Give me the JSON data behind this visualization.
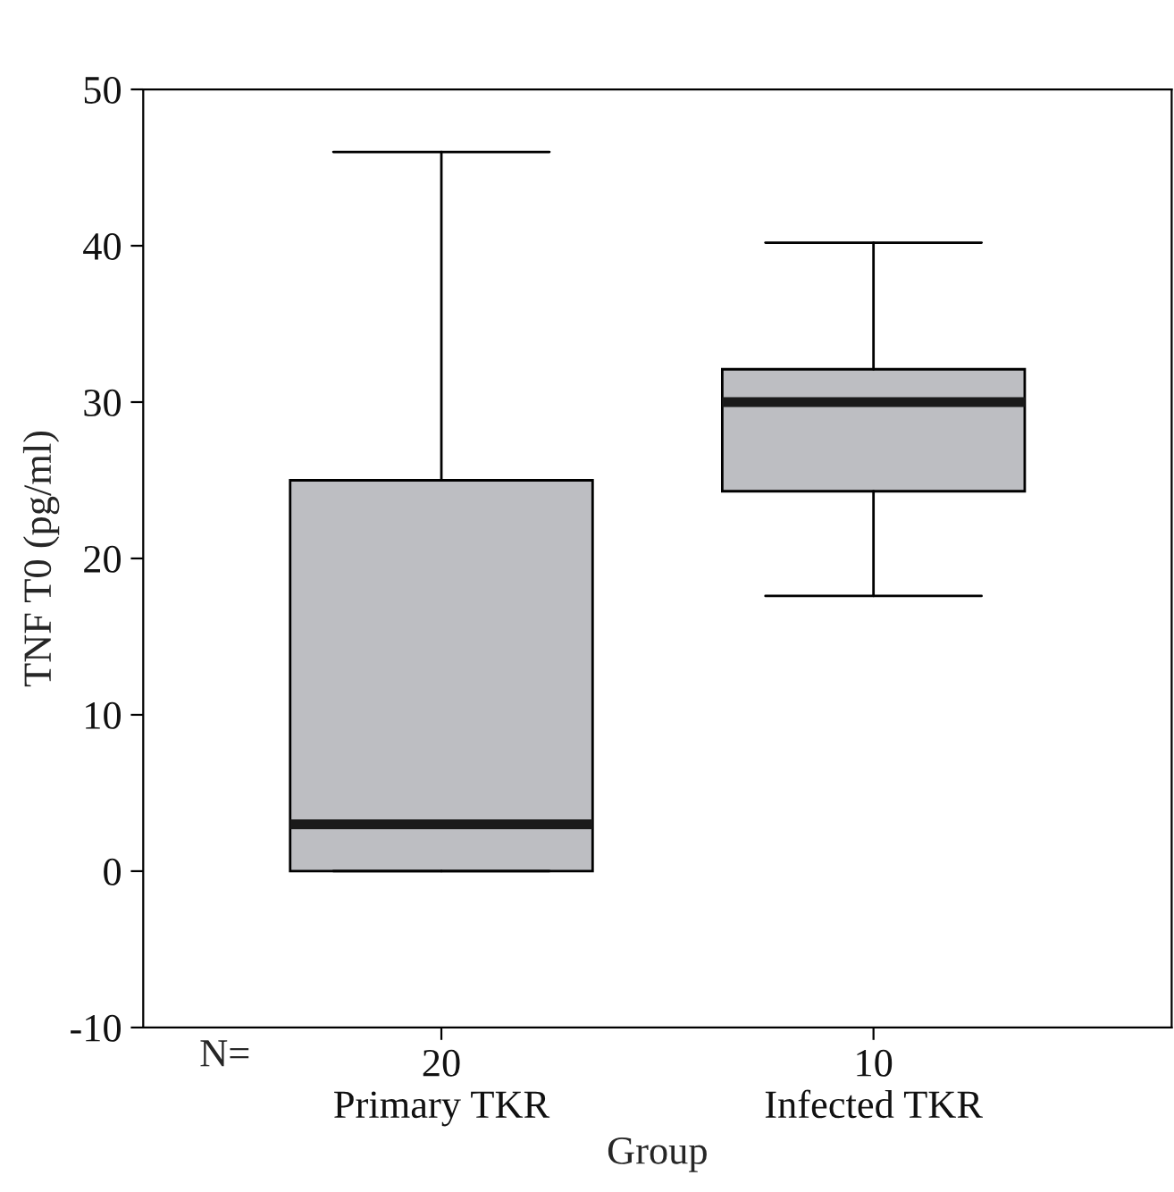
{
  "chart_data": {
    "type": "box",
    "xlabel": "Group",
    "ylabel": "TNF T0 (pg/ml)",
    "categories": [
      "20\nPrimary TKR",
      "10\nInfected TKR"
    ],
    "series": [
      {
        "color": "#bdbec2",
        "boxes": [
          {
            "low": 0,
            "q1": 0,
            "median": 3,
            "q3": 25,
            "high": 46
          },
          {
            "low": 17.6,
            "q1": 24.3,
            "median": 30,
            "q3": 32.1,
            "high": 40.2
          }
        ]
      }
    ],
    "ylim": [
      -10,
      50
    ],
    "yticks": [
      -10,
      0,
      10,
      20,
      30,
      40,
      50
    ],
    "grid": false,
    "legend": false,
    "annotations": [
      "N="
    ]
  }
}
